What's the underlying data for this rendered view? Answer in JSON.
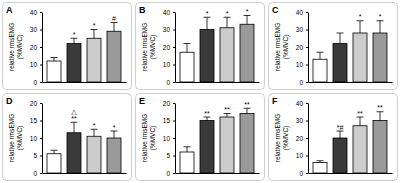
{
  "chart_data": [
    {
      "type": "bar",
      "title": "A",
      "categories": [
        null,
        null,
        null,
        null
      ],
      "values": [
        12,
        22,
        25,
        29
      ],
      "errors": [
        2,
        3,
        5,
        5
      ],
      "colors": [
        "#ffffff",
        "#3a3a3a",
        "#cccccc",
        "#9a9a9a"
      ],
      "annotations": [
        null,
        [
          "*"
        ],
        [
          "*"
        ],
        [
          "#"
        ]
      ],
      "y_label": [
        "relative rmsEMG",
        "(%MVC)"
      ],
      "ylim": [
        0,
        40
      ],
      "yticks": [
        0,
        10,
        20,
        30,
        40
      ]
    },
    {
      "type": "bar",
      "title": "B",
      "categories": [
        null,
        null,
        null,
        null
      ],
      "values": [
        17,
        30,
        31,
        33
      ],
      "errors": [
        5,
        7,
        6,
        5
      ],
      "colors": [
        "#ffffff",
        "#3a3a3a",
        "#cccccc",
        "#9a9a9a"
      ],
      "annotations": [
        null,
        [
          "*"
        ],
        [
          "*"
        ],
        [
          "*"
        ]
      ],
      "y_label": [
        "relative rmsEMG",
        "(%MVC)"
      ],
      "ylim": [
        0,
        40
      ],
      "yticks": [
        0,
        10,
        20,
        30,
        40
      ]
    },
    {
      "type": "bar",
      "title": "C",
      "categories": [
        null,
        null,
        null,
        null
      ],
      "values": [
        13,
        22,
        28,
        28
      ],
      "errors": [
        4,
        6,
        7,
        7
      ],
      "colors": [
        "#ffffff",
        "#3a3a3a",
        "#cccccc",
        "#9a9a9a"
      ],
      "annotations": [
        null,
        null,
        [
          "*"
        ],
        [
          "*"
        ]
      ],
      "y_label": [
        "relative rmsEMG",
        "(%MVC)"
      ],
      "ylim": [
        0,
        40
      ],
      "yticks": [
        0,
        10,
        20,
        30,
        40
      ]
    },
    {
      "type": "bar",
      "title": "D",
      "categories": [
        null,
        null,
        null,
        null
      ],
      "values": [
        5.5,
        11.5,
        10.5,
        10
      ],
      "errors": [
        1,
        3,
        2,
        2
      ],
      "colors": [
        "#ffffff",
        "#3a3a3a",
        "#cccccc",
        "#9a9a9a"
      ],
      "annotations": [
        null,
        [
          "△",
          "**"
        ],
        [
          "*"
        ],
        [
          "*"
        ]
      ],
      "y_label": [
        "relative rmsEMG",
        "(%MVC)"
      ],
      "ylim": [
        0,
        20
      ],
      "yticks": [
        0,
        5,
        10,
        15,
        20
      ]
    },
    {
      "type": "bar",
      "title": "E",
      "categories": [
        null,
        null,
        null,
        null
      ],
      "values": [
        6,
        15,
        16,
        17
      ],
      "errors": [
        1.5,
        1,
        1,
        1.5
      ],
      "colors": [
        "#ffffff",
        "#3a3a3a",
        "#cccccc",
        "#9a9a9a"
      ],
      "annotations": [
        null,
        [
          "**"
        ],
        [
          "**"
        ],
        [
          "**"
        ]
      ],
      "y_label": [
        "relative rmsEMG",
        "(%MVC)"
      ],
      "ylim": [
        0,
        20
      ],
      "yticks": [
        0,
        5,
        10,
        15,
        20
      ]
    },
    {
      "type": "bar",
      "title": "F",
      "categories": [
        null,
        null,
        null,
        null
      ],
      "values": [
        6,
        20,
        27,
        30
      ],
      "errors": [
        1,
        4,
        5,
        5
      ],
      "colors": [
        "#ffffff",
        "#3a3a3a",
        "#cccccc",
        "#9a9a9a"
      ],
      "annotations": [
        null,
        [
          "*#"
        ],
        [
          "**"
        ],
        [
          "**"
        ]
      ],
      "y_label": [
        "relative rmsEMG",
        "(%MVC)"
      ],
      "ylim": [
        0,
        40
      ],
      "yticks": [
        0,
        10,
        20,
        30,
        40
      ]
    }
  ]
}
